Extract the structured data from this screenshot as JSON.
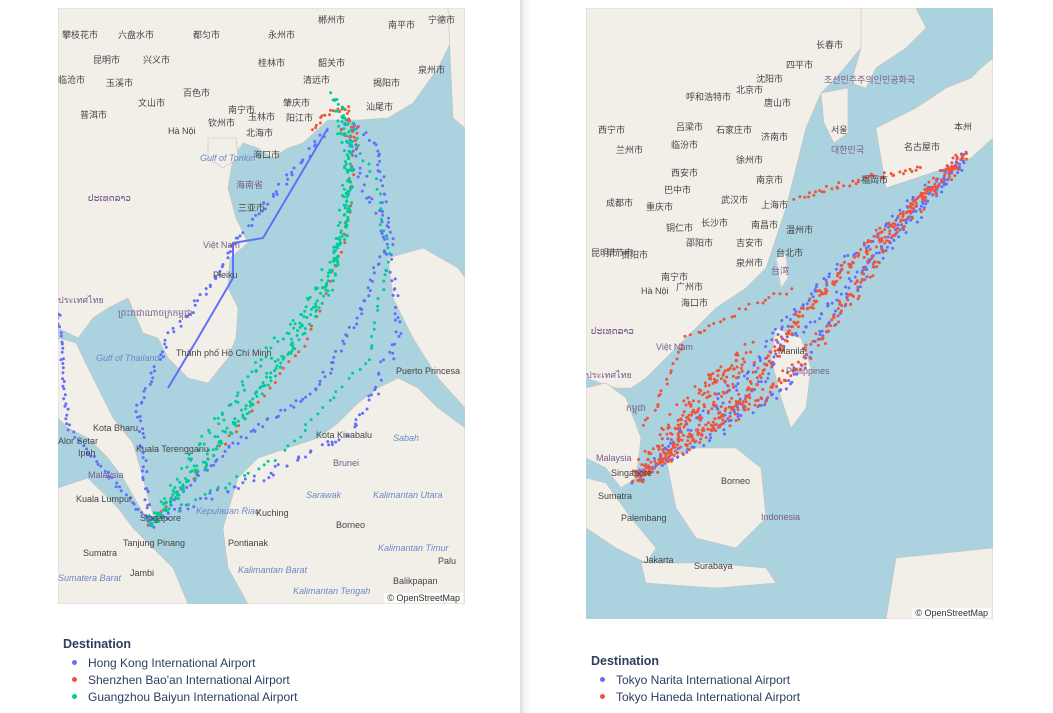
{
  "colors": {
    "hkg": "#636efa",
    "szx": "#ef553b",
    "can": "#00cc96",
    "nrt": "#636efa",
    "hnd": "#ef553b",
    "water": "#aad3df",
    "land": "#f2efe9"
  },
  "left": {
    "attribution": "© OpenStreetMap",
    "legend": {
      "title": "Destination",
      "items": [
        {
          "label": "Hong Kong International Airport",
          "color": "#636efa"
        },
        {
          "label": "Shenzhen Bao'an International Airport",
          "color": "#ef553b"
        },
        {
          "label": "Guangzhou Baiyun International Airport",
          "color": "#00cc96"
        }
      ]
    },
    "places": [
      {
        "text": "攀枝花市",
        "cls": ""
      },
      {
        "text": "六盘水市",
        "cls": ""
      },
      {
        "text": "都匀市",
        "cls": ""
      },
      {
        "text": "永州市",
        "cls": ""
      },
      {
        "text": "郴州市",
        "cls": ""
      },
      {
        "text": "南平市",
        "cls": ""
      },
      {
        "text": "宁德市",
        "cls": ""
      },
      {
        "text": "昆明市",
        "cls": ""
      },
      {
        "text": "兴义市",
        "cls": ""
      },
      {
        "text": "桂林市",
        "cls": ""
      },
      {
        "text": "韶关市",
        "cls": ""
      },
      {
        "text": "泉州市",
        "cls": ""
      },
      {
        "text": "临沧市",
        "cls": ""
      },
      {
        "text": "玉溪市",
        "cls": ""
      },
      {
        "text": "百色市",
        "cls": ""
      },
      {
        "text": "清远市",
        "cls": ""
      },
      {
        "text": "揭阳市",
        "cls": ""
      },
      {
        "text": "普洱市",
        "cls": ""
      },
      {
        "text": "文山市",
        "cls": ""
      },
      {
        "text": "南宁市",
        "cls": ""
      },
      {
        "text": "肇庆市",
        "cls": ""
      },
      {
        "text": "汕尾市",
        "cls": ""
      },
      {
        "text": "Hà Nội",
        "cls": ""
      },
      {
        "text": "钦州市",
        "cls": ""
      },
      {
        "text": "玉林市",
        "cls": ""
      },
      {
        "text": "阳江市",
        "cls": ""
      },
      {
        "text": "北海市",
        "cls": ""
      },
      {
        "text": "海口市",
        "cls": ""
      },
      {
        "text": "Gulf of Tonkin",
        "cls": "sea"
      },
      {
        "text": "海南省",
        "cls": "country"
      },
      {
        "text": "ປະເທດລາວ",
        "cls": "country"
      },
      {
        "text": "三亚市",
        "cls": ""
      },
      {
        "text": "Việt Nam",
        "cls": "country"
      },
      {
        "text": "Pleiku",
        "cls": ""
      },
      {
        "text": "ประเทศไทย",
        "cls": "country"
      },
      {
        "text": "ព្រះរាជាណាចក្រកម្ពុជា",
        "cls": "country"
      },
      {
        "text": "Gulf of Thailand",
        "cls": "sea"
      },
      {
        "text": "Thành phố Hồ Chí Minh",
        "cls": ""
      },
      {
        "text": "Puerto Princesa",
        "cls": ""
      },
      {
        "text": "Kota Bharu",
        "cls": ""
      },
      {
        "text": "Alor Setar",
        "cls": ""
      },
      {
        "text": "Kuala Terengganu",
        "cls": ""
      },
      {
        "text": "Kota Kinabalu",
        "cls": ""
      },
      {
        "text": "Sabah",
        "cls": "sea"
      },
      {
        "text": "Ipoh",
        "cls": ""
      },
      {
        "text": "Brunei",
        "cls": "country"
      },
      {
        "text": "Malaysia",
        "cls": "country"
      },
      {
        "text": "Kuala Lumpur",
        "cls": ""
      },
      {
        "text": "Sarawak",
        "cls": "sea"
      },
      {
        "text": "Kalimantan Utara",
        "cls": "sea"
      },
      {
        "text": "Singapore",
        "cls": ""
      },
      {
        "text": "Kepulauan Riau",
        "cls": "sea"
      },
      {
        "text": "Kuching",
        "cls": ""
      },
      {
        "text": "Borneo",
        "cls": ""
      },
      {
        "text": "Sumatra",
        "cls": ""
      },
      {
        "text": "Tanjung Pinang",
        "cls": ""
      },
      {
        "text": "Pontianak",
        "cls": ""
      },
      {
        "text": "Kalimantan Timur",
        "cls": "sea"
      },
      {
        "text": "Palu",
        "cls": ""
      },
      {
        "text": "Jambi",
        "cls": ""
      },
      {
        "text": "Kalimantan Barat",
        "cls": "sea"
      },
      {
        "text": "Kalimantan Tengah",
        "cls": "sea"
      },
      {
        "text": "Balikpapan",
        "cls": ""
      },
      {
        "text": "Sumatera Barat",
        "cls": "sea"
      }
    ]
  },
  "right": {
    "attribution": "© OpenStreetMap",
    "legend": {
      "title": "Destination",
      "items": [
        {
          "label": "Tokyo Narita International Airport",
          "color": "#636efa"
        },
        {
          "label": "Tokyo Haneda International Airport",
          "color": "#ef553b"
        }
      ]
    },
    "places": [
      {
        "text": "长春市",
        "cls": ""
      },
      {
        "text": "四平市",
        "cls": ""
      },
      {
        "text": "沈阳市",
        "cls": ""
      },
      {
        "text": "呼和浩特市",
        "cls": ""
      },
      {
        "text": "北京市",
        "cls": ""
      },
      {
        "text": "唐山市",
        "cls": ""
      },
      {
        "text": "조선민주주의인민공화국",
        "cls": "country"
      },
      {
        "text": "서울",
        "cls": ""
      },
      {
        "text": "西宁市",
        "cls": ""
      },
      {
        "text": "吕梁市",
        "cls": ""
      },
      {
        "text": "石家庄市",
        "cls": ""
      },
      {
        "text": "济南市",
        "cls": ""
      },
      {
        "text": "兰州市",
        "cls": ""
      },
      {
        "text": "临汾市",
        "cls": ""
      },
      {
        "text": "徐州市",
        "cls": ""
      },
      {
        "text": "대한민국",
        "cls": "country"
      },
      {
        "text": "本州",
        "cls": ""
      },
      {
        "text": "名古屋市",
        "cls": ""
      },
      {
        "text": "福岡市",
        "cls": ""
      },
      {
        "text": "西安市",
        "cls": ""
      },
      {
        "text": "南京市",
        "cls": ""
      },
      {
        "text": "巴中市",
        "cls": ""
      },
      {
        "text": "武汉市",
        "cls": ""
      },
      {
        "text": "成都市",
        "cls": ""
      },
      {
        "text": "重庆市",
        "cls": ""
      },
      {
        "text": "上海市",
        "cls": ""
      },
      {
        "text": "毕节市",
        "cls": ""
      },
      {
        "text": "铜仁市",
        "cls": ""
      },
      {
        "text": "长沙市",
        "cls": ""
      },
      {
        "text": "南昌市",
        "cls": ""
      },
      {
        "text": "温州市",
        "cls": ""
      },
      {
        "text": "邵阳市",
        "cls": ""
      },
      {
        "text": "吉安市",
        "cls": ""
      },
      {
        "text": "台北市",
        "cls": ""
      },
      {
        "text": "昆明市",
        "cls": ""
      },
      {
        "text": "贵阳市",
        "cls": ""
      },
      {
        "text": "泉州市",
        "cls": ""
      },
      {
        "text": "南宁市",
        "cls": ""
      },
      {
        "text": "广州市",
        "cls": ""
      },
      {
        "text": "台湾",
        "cls": "country"
      },
      {
        "text": "Hà Nội",
        "cls": ""
      },
      {
        "text": "海口市",
        "cls": ""
      },
      {
        "text": "ປະເທດລາວ",
        "cls": "country"
      },
      {
        "text": "Việt Nam",
        "cls": "country"
      },
      {
        "text": "Manila",
        "cls": ""
      },
      {
        "text": "Philippines",
        "cls": "country"
      },
      {
        "text": "ประเทศไทย",
        "cls": "country"
      },
      {
        "text": "កម្ពុជា",
        "cls": "country"
      },
      {
        "text": "Malaysia",
        "cls": "country"
      },
      {
        "text": "Singapore",
        "cls": ""
      },
      {
        "text": "Borneo",
        "cls": ""
      },
      {
        "text": "Sumatra",
        "cls": ""
      },
      {
        "text": "Palembang",
        "cls": ""
      },
      {
        "text": "Indonesia",
        "cls": "country"
      },
      {
        "text": "Jakarta",
        "cls": ""
      },
      {
        "text": "Surabaya",
        "cls": ""
      }
    ]
  }
}
